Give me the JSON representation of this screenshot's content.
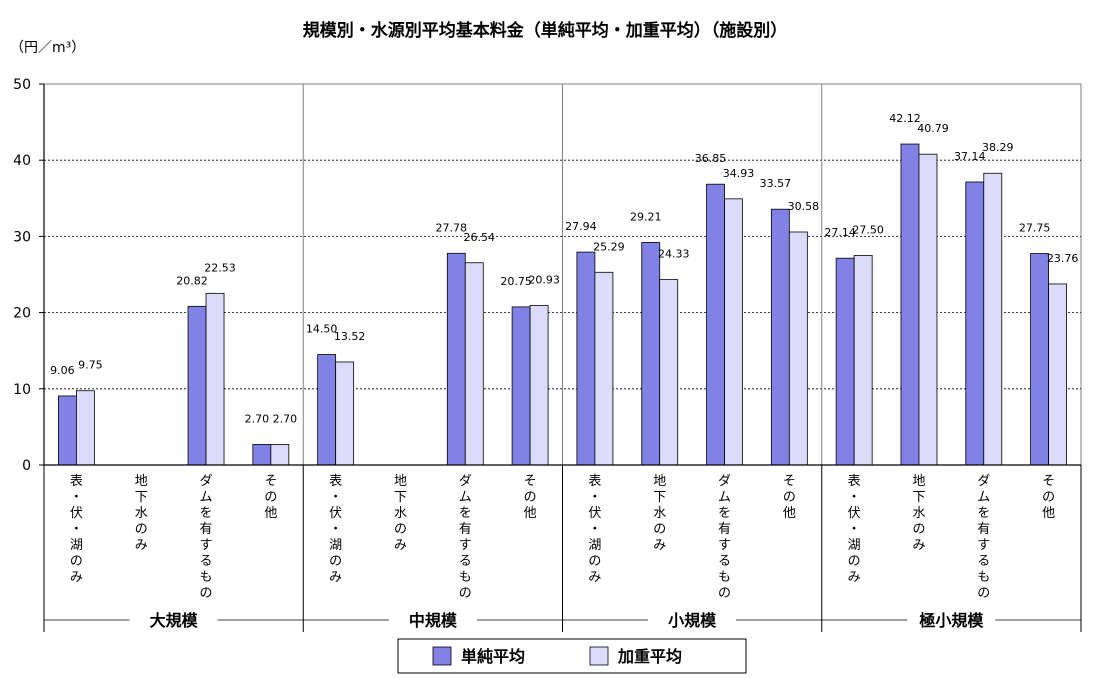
{
  "chart_data": {
    "type": "bar",
    "title": "規模別・水源別平均基本料金（単純平均・加重平均）（施設別）",
    "unit": "（円／m³）",
    "ylim": [
      0,
      50
    ],
    "yticks": [
      "0",
      "10",
      "20",
      "30",
      "40",
      "50"
    ],
    "grid": true,
    "legend_position": "bottom",
    "groups": [
      {
        "name": "大規模",
        "categories": [
          "表・伏・湖のみ",
          "地下水のみ",
          "ダムを有するもの",
          "その他"
        ]
      },
      {
        "name": "中規模",
        "categories": [
          "表・伏・湖のみ",
          "地下水のみ",
          "ダムを有するもの",
          "その他"
        ]
      },
      {
        "name": "小規模",
        "categories": [
          "表・伏・湖のみ",
          "地下水のみ",
          "ダムを有するもの",
          "その他"
        ]
      },
      {
        "name": "極小規模",
        "categories": [
          "表・伏・湖のみ",
          "地下水のみ",
          "ダムを有するもの",
          "その他"
        ]
      }
    ],
    "series": [
      {
        "name": "単純平均",
        "color": "#8282e6",
        "values": [
          9.06,
          null,
          20.82,
          2.7,
          14.5,
          null,
          27.78,
          20.75,
          27.94,
          29.21,
          36.85,
          33.57,
          27.14,
          42.12,
          37.14,
          27.75
        ],
        "labels": [
          "9.06",
          "",
          "20.82",
          "2.70",
          "14.50",
          "",
          "27.78",
          "20.75",
          "27.94",
          "29.21",
          "36.85",
          "33.57",
          "27.14",
          "42.12",
          "37.14",
          "27.75"
        ]
      },
      {
        "name": "加重平均",
        "color": "#dcdcfa",
        "values": [
          9.75,
          null,
          22.53,
          2.7,
          13.52,
          null,
          26.54,
          20.93,
          25.29,
          24.33,
          34.93,
          30.58,
          27.5,
          40.79,
          38.29,
          23.76
        ],
        "labels": [
          "9.75",
          "",
          "22.53",
          "2.70",
          "13.52",
          "",
          "26.54",
          "20.93",
          "25.29",
          "24.33",
          "34.93",
          "30.58",
          "27.50",
          "40.79",
          "38.29",
          "23.76"
        ]
      }
    ]
  }
}
